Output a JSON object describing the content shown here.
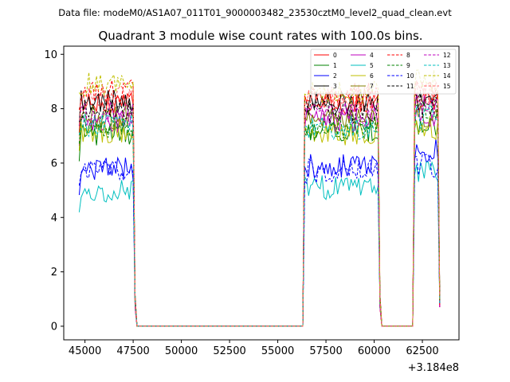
{
  "header": {
    "filename": "Data file: modeM0/AS1A07_011T01_9000003482_23530cztM0_level2_quad_clean.evt"
  },
  "chart_data": {
    "type": "line",
    "title": "Quadrant 3 module wise count rates with 100.0s bins.",
    "xlabel": "",
    "ylabel": "",
    "x_offset_label": "+3.184e8",
    "xlim": [
      43900,
      64400
    ],
    "ylim": [
      -0.5,
      10.3
    ],
    "xticks": [
      45000,
      47500,
      50000,
      52500,
      55000,
      57500,
      60000,
      62500
    ],
    "xtick_labels": [
      "45000",
      "47500",
      "50000",
      "52500",
      "55000",
      "57500",
      "60000",
      "62500"
    ],
    "yticks": [
      0,
      2,
      4,
      6,
      8,
      10
    ],
    "ytick_labels": [
      "0",
      "2",
      "4",
      "6",
      "8",
      "10"
    ],
    "grid": false,
    "legend_position": "top-right",
    "segments": [
      {
        "start": 44700,
        "end": 47600
      },
      {
        "start": 56400,
        "end": 60300
      },
      {
        "start": 62100,
        "end": 63400
      }
    ],
    "gap_level": 0,
    "series": [
      {
        "name": "0",
        "color": "#ff0000",
        "dash": false,
        "levels": [
          8.2,
          8.2,
          8.3
        ]
      },
      {
        "name": "1",
        "color": "#008000",
        "dash": false,
        "levels": [
          7.1,
          7.2,
          7.3
        ]
      },
      {
        "name": "2",
        "color": "#0000ff",
        "dash": false,
        "levels": [
          5.8,
          5.9,
          6.5
        ]
      },
      {
        "name": "3",
        "color": "#000000",
        "dash": false,
        "levels": [
          8.3,
          8.2,
          8.3
        ]
      },
      {
        "name": "4",
        "color": "#bf00bf",
        "dash": false,
        "levels": [
          7.5,
          7.6,
          7.7
        ]
      },
      {
        "name": "5",
        "color": "#00bfbf",
        "dash": false,
        "levels": [
          5.0,
          5.1,
          5.7
        ]
      },
      {
        "name": "6",
        "color": "#bfbf00",
        "dash": false,
        "levels": [
          7.2,
          7.1,
          7.3
        ]
      },
      {
        "name": "7",
        "color": "#808000",
        "dash": false,
        "levels": [
          7.7,
          7.6,
          7.7
        ]
      },
      {
        "name": "8",
        "color": "#ff0000",
        "dash": true,
        "levels": [
          8.6,
          8.5,
          8.7
        ]
      },
      {
        "name": "9",
        "color": "#008000",
        "dash": true,
        "levels": [
          7.3,
          7.3,
          7.8
        ]
      },
      {
        "name": "10",
        "color": "#0000ff",
        "dash": true,
        "levels": [
          5.7,
          5.7,
          5.9
        ]
      },
      {
        "name": "11",
        "color": "#000000",
        "dash": true,
        "levels": [
          8.0,
          7.9,
          8.1
        ]
      },
      {
        "name": "12",
        "color": "#bf00bf",
        "dash": true,
        "levels": [
          7.8,
          7.8,
          8.2
        ]
      },
      {
        "name": "13",
        "color": "#00bfbf",
        "dash": true,
        "levels": [
          7.4,
          7.3,
          7.7
        ]
      },
      {
        "name": "14",
        "color": "#bfbf00",
        "dash": true,
        "levels": [
          8.9,
          8.6,
          9.0
        ]
      },
      {
        "name": "15",
        "color": "#ff6666",
        "dash": true,
        "levels": [
          8.4,
          8.4,
          8.6
        ]
      }
    ]
  }
}
